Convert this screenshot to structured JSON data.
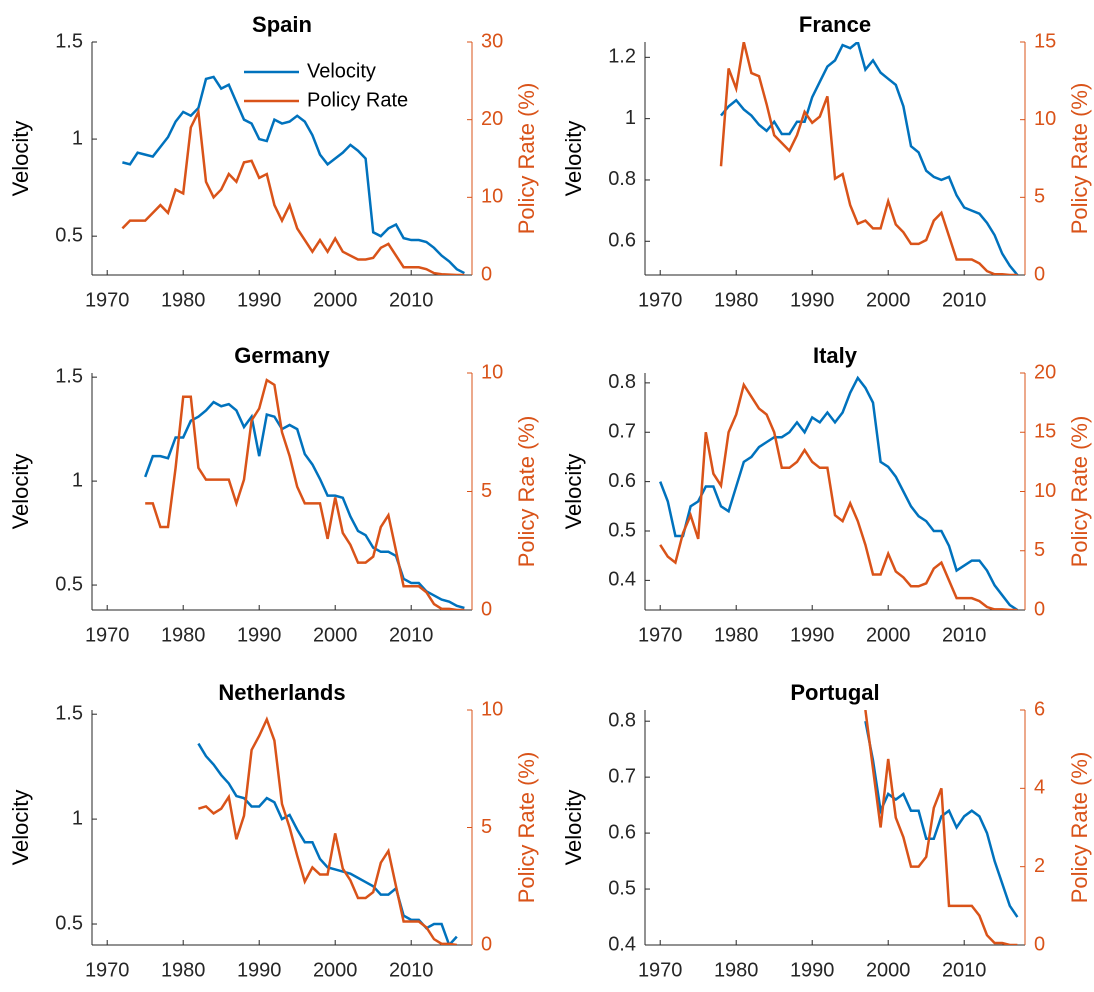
{
  "chart_data": [
    {
      "type": "line",
      "title": "Spain",
      "ylabel": "Velocity",
      "y2label": "Policy Rate (%)",
      "legend": "northeast",
      "x": [
        1972,
        1973,
        1974,
        1975,
        1976,
        1977,
        1978,
        1979,
        1980,
        1981,
        1982,
        1983,
        1984,
        1985,
        1986,
        1987,
        1988,
        1989,
        1990,
        1991,
        1992,
        1993,
        1994,
        1995,
        1996,
        1997,
        1998,
        1999,
        2000,
        2001,
        2002,
        2003,
        2004,
        2005,
        2006,
        2007,
        2008,
        2009,
        2010,
        2011,
        2012,
        2013,
        2014,
        2015,
        2016,
        2017
      ],
      "series": [
        {
          "name": "Velocity",
          "color": "#0072BD",
          "values": [
            0.88,
            0.87,
            0.93,
            0.92,
            0.91,
            0.96,
            1.01,
            1.09,
            1.14,
            1.12,
            1.16,
            1.31,
            1.32,
            1.26,
            1.28,
            1.19,
            1.1,
            1.08,
            1.0,
            0.99,
            1.1,
            1.08,
            1.09,
            1.12,
            1.09,
            1.02,
            0.92,
            0.87,
            0.9,
            0.93,
            0.97,
            0.94,
            0.9,
            0.52,
            0.5,
            0.54,
            0.56,
            0.49,
            0.48,
            0.48,
            0.47,
            0.44,
            0.4,
            0.37,
            0.33,
            0.31
          ]
        },
        {
          "name": "Policy Rate",
          "color": "#D95319",
          "axis": "y2",
          "values": [
            6,
            7,
            7,
            7,
            8,
            9,
            8,
            11,
            10.5,
            19,
            21,
            12,
            10,
            11,
            13,
            12,
            14.5,
            14.7,
            12.5,
            13,
            9,
            7,
            9,
            6,
            4.5,
            3,
            4.5,
            3,
            4.7,
            3,
            2.5,
            2,
            2,
            2.2,
            3.5,
            4,
            2.5,
            1,
            1,
            1,
            0.75,
            0.25,
            0.1,
            0.05,
            0,
            0
          ]
        }
      ],
      "xlim": [
        1968,
        2018
      ],
      "xticks": [
        1970,
        1980,
        1990,
        2000,
        2010
      ],
      "ylim": [
        0.3,
        1.5
      ],
      "yticks": [
        0.5,
        1,
        1.5
      ],
      "y2lim": [
        0,
        30
      ],
      "y2ticks": [
        0,
        10,
        20,
        30
      ]
    },
    {
      "type": "line",
      "title": "France",
      "ylabel": "Velocity",
      "y2label": "Policy Rate (%)",
      "x": [
        1978,
        1979,
        1980,
        1981,
        1982,
        1983,
        1984,
        1985,
        1986,
        1987,
        1988,
        1989,
        1990,
        1991,
        1992,
        1993,
        1994,
        1995,
        1996,
        1997,
        1998,
        1999,
        2000,
        2001,
        2002,
        2003,
        2004,
        2005,
        2006,
        2007,
        2008,
        2009,
        2010,
        2011,
        2012,
        2013,
        2014,
        2015,
        2016,
        2017
      ],
      "series": [
        {
          "name": "Velocity",
          "color": "#0072BD",
          "values": [
            1.01,
            1.04,
            1.06,
            1.03,
            1.01,
            0.98,
            0.96,
            0.99,
            0.95,
            0.95,
            0.99,
            0.99,
            1.07,
            1.12,
            1.17,
            1.19,
            1.24,
            1.23,
            1.25,
            1.16,
            1.19,
            1.15,
            1.13,
            1.11,
            1.04,
            0.91,
            0.89,
            0.83,
            0.81,
            0.8,
            0.81,
            0.75,
            0.71,
            0.7,
            0.69,
            0.66,
            0.62,
            0.56,
            0.52,
            0.49
          ]
        },
        {
          "name": "Policy Rate",
          "color": "#D95319",
          "axis": "y2",
          "values": [
            7,
            13.3,
            12,
            15,
            13,
            12.8,
            11,
            9,
            8.5,
            8,
            9,
            10.5,
            9.8,
            10.2,
            11.5,
            6.2,
            6.5,
            4.5,
            3.3,
            3.5,
            3,
            3,
            4.75,
            3.25,
            2.75,
            2,
            2,
            2.25,
            3.5,
            4,
            2.5,
            1,
            1,
            1,
            0.75,
            0.25,
            0.05,
            0.05,
            0,
            0
          ]
        }
      ],
      "xlim": [
        1968,
        2018
      ],
      "xticks": [
        1970,
        1980,
        1990,
        2000,
        2010
      ],
      "ylim": [
        0.49,
        1.25
      ],
      "yticks": [
        0.6,
        0.8,
        1,
        1.2
      ],
      "y2lim": [
        0,
        15
      ],
      "y2ticks": [
        0,
        5,
        10,
        15
      ]
    },
    {
      "type": "line",
      "title": "Germany",
      "ylabel": "Velocity",
      "y2label": "Policy Rate (%)",
      "x": [
        1975,
        1976,
        1977,
        1978,
        1979,
        1980,
        1981,
        1982,
        1983,
        1984,
        1985,
        1986,
        1987,
        1988,
        1989,
        1990,
        1991,
        1992,
        1993,
        1994,
        1995,
        1996,
        1997,
        1998,
        1999,
        2000,
        2001,
        2002,
        2003,
        2004,
        2005,
        2006,
        2007,
        2008,
        2009,
        2010,
        2011,
        2012,
        2013,
        2014,
        2015,
        2016,
        2017
      ],
      "series": [
        {
          "name": "Velocity",
          "color": "#0072BD",
          "values": [
            1.02,
            1.12,
            1.12,
            1.11,
            1.21,
            1.21,
            1.29,
            1.31,
            1.34,
            1.38,
            1.36,
            1.37,
            1.34,
            1.26,
            1.31,
            1.12,
            1.32,
            1.31,
            1.25,
            1.27,
            1.25,
            1.13,
            1.08,
            1.01,
            0.93,
            0.93,
            0.92,
            0.83,
            0.76,
            0.74,
            0.68,
            0.66,
            0.66,
            0.64,
            0.53,
            0.51,
            0.51,
            0.47,
            0.45,
            0.43,
            0.42,
            0.4,
            0.39
          ]
        },
        {
          "name": "Policy Rate",
          "color": "#D95319",
          "axis": "y2",
          "values": [
            4.5,
            4.5,
            3.5,
            3.5,
            6,
            9,
            9,
            6,
            5.5,
            5.5,
            5.5,
            5.5,
            4.5,
            5.5,
            8,
            8.5,
            9.7,
            9.5,
            7.5,
            6.5,
            5.2,
            4.5,
            4.5,
            4.5,
            3,
            4.75,
            3.25,
            2.75,
            2,
            2,
            2.25,
            3.5,
            4,
            2.5,
            1,
            1,
            1,
            0.75,
            0.25,
            0.05,
            0.05,
            0,
            0
          ]
        }
      ],
      "xlim": [
        1968,
        2018
      ],
      "xticks": [
        1970,
        1980,
        1990,
        2000,
        2010
      ],
      "ylim": [
        0.38,
        1.52
      ],
      "yticks": [
        0.5,
        1,
        1.5
      ],
      "y2lim": [
        0,
        10
      ],
      "y2ticks": [
        0,
        5,
        10
      ]
    },
    {
      "type": "line",
      "title": "Italy",
      "ylabel": "Velocity",
      "y2label": "Policy Rate (%)",
      "x": [
        1970,
        1971,
        1972,
        1973,
        1974,
        1975,
        1976,
        1977,
        1978,
        1979,
        1980,
        1981,
        1982,
        1983,
        1984,
        1985,
        1986,
        1987,
        1988,
        1989,
        1990,
        1991,
        1992,
        1993,
        1994,
        1995,
        1996,
        1997,
        1998,
        1999,
        2000,
        2001,
        2002,
        2003,
        2004,
        2005,
        2006,
        2007,
        2008,
        2009,
        2010,
        2011,
        2012,
        2013,
        2014,
        2015,
        2016,
        2017
      ],
      "series": [
        {
          "name": "Velocity",
          "color": "#0072BD",
          "values": [
            0.6,
            0.56,
            0.49,
            0.49,
            0.55,
            0.56,
            0.59,
            0.59,
            0.55,
            0.54,
            0.59,
            0.64,
            0.65,
            0.67,
            0.68,
            0.69,
            0.69,
            0.7,
            0.72,
            0.7,
            0.73,
            0.72,
            0.74,
            0.72,
            0.74,
            0.78,
            0.81,
            0.79,
            0.76,
            0.64,
            0.63,
            0.61,
            0.58,
            0.55,
            0.53,
            0.52,
            0.5,
            0.5,
            0.47,
            0.42,
            0.43,
            0.44,
            0.44,
            0.42,
            0.39,
            0.37,
            0.35,
            0.34
          ]
        },
        {
          "name": "Policy Rate",
          "color": "#D95319",
          "axis": "y2",
          "values": [
            5.5,
            4.5,
            4,
            6.5,
            8,
            6,
            15,
            11.5,
            10.5,
            15,
            16.5,
            19,
            18,
            17,
            16.5,
            15,
            12,
            12,
            12.5,
            13.5,
            12.5,
            12,
            12,
            8,
            7.5,
            9,
            7.5,
            5.5,
            3,
            3,
            4.75,
            3.25,
            2.75,
            2,
            2,
            2.25,
            3.5,
            4,
            2.5,
            1,
            1,
            1,
            0.75,
            0.25,
            0.05,
            0.05,
            0,
            0
          ]
        }
      ],
      "xlim": [
        1968,
        2018
      ],
      "xticks": [
        1970,
        1980,
        1990,
        2000,
        2010
      ],
      "ylim": [
        0.34,
        0.82
      ],
      "yticks": [
        0.4,
        0.5,
        0.6,
        0.7,
        0.8
      ],
      "y2lim": [
        0,
        20
      ],
      "y2ticks": [
        0,
        5,
        10,
        15,
        20
      ]
    },
    {
      "type": "line",
      "title": "Netherlands",
      "ylabel": "Velocity",
      "y2label": "Policy Rate (%)",
      "x": [
        1982,
        1983,
        1984,
        1985,
        1986,
        1987,
        1988,
        1989,
        1990,
        1991,
        1992,
        1993,
        1994,
        1995,
        1996,
        1997,
        1998,
        1999,
        2000,
        2001,
        2002,
        2003,
        2004,
        2005,
        2006,
        2007,
        2008,
        2009,
        2010,
        2011,
        2012,
        2013,
        2014,
        2015,
        2016
      ],
      "series": [
        {
          "name": "Velocity",
          "color": "#0072BD",
          "values": [
            1.36,
            1.3,
            1.26,
            1.21,
            1.17,
            1.11,
            1.1,
            1.06,
            1.06,
            1.1,
            1.08,
            1.0,
            1.02,
            0.95,
            0.89,
            0.89,
            0.81,
            0.77,
            0.76,
            0.75,
            0.74,
            0.72,
            0.7,
            0.68,
            0.64,
            0.64,
            0.67,
            0.54,
            0.52,
            0.52,
            0.48,
            0.5,
            0.5,
            0.4,
            0.44
          ]
        },
        {
          "name": "Policy Rate",
          "color": "#D95319",
          "axis": "y2",
          "values": [
            5.8,
            5.9,
            5.6,
            5.8,
            6.3,
            4.5,
            5.5,
            8.3,
            8.9,
            9.6,
            8.7,
            6,
            5,
            3.8,
            2.7,
            3.3,
            3,
            3,
            4.75,
            3.25,
            2.75,
            2,
            2,
            2.25,
            3.5,
            4,
            2.5,
            1,
            1,
            1,
            0.75,
            0.25,
            0.05,
            0.05,
            0
          ]
        }
      ],
      "xlim": [
        1968,
        2018
      ],
      "xticks": [
        1970,
        1980,
        1990,
        2000,
        2010
      ],
      "ylim": [
        0.4,
        1.52
      ],
      "yticks": [
        0.5,
        1,
        1.5
      ],
      "y2lim": [
        0,
        10
      ],
      "y2ticks": [
        0,
        5,
        10
      ]
    },
    {
      "type": "line",
      "title": "Portugal",
      "ylabel": "Velocity",
      "y2label": "Policy Rate (%)",
      "x": [
        1997,
        1998,
        1999,
        2000,
        2001,
        2002,
        2003,
        2004,
        2005,
        2006,
        2007,
        2008,
        2009,
        2010,
        2011,
        2012,
        2013,
        2014,
        2015,
        2016,
        2017
      ],
      "series": [
        {
          "name": "Velocity",
          "color": "#0072BD",
          "values": [
            0.8,
            0.73,
            0.64,
            0.67,
            0.66,
            0.67,
            0.64,
            0.64,
            0.59,
            0.59,
            0.63,
            0.64,
            0.61,
            0.63,
            0.64,
            0.63,
            0.6,
            0.55,
            0.51,
            0.47,
            0.45
          ]
        },
        {
          "name": "Policy Rate",
          "color": "#D95319",
          "axis": "y2",
          "values": [
            6,
            4.5,
            3,
            4.75,
            3.25,
            2.75,
            2,
            2,
            2.25,
            3.5,
            4,
            1,
            1,
            1,
            1,
            0.75,
            0.25,
            0.05,
            0.05,
            0,
            0
          ]
        }
      ],
      "xlim": [
        1968,
        2018
      ],
      "xticks": [
        1970,
        1980,
        1990,
        2000,
        2010
      ],
      "ylim": [
        0.4,
        0.82
      ],
      "yticks": [
        0.4,
        0.5,
        0.6,
        0.7,
        0.8
      ],
      "y2lim": [
        0,
        6
      ],
      "y2ticks": [
        0,
        2,
        4,
        6
      ]
    }
  ]
}
